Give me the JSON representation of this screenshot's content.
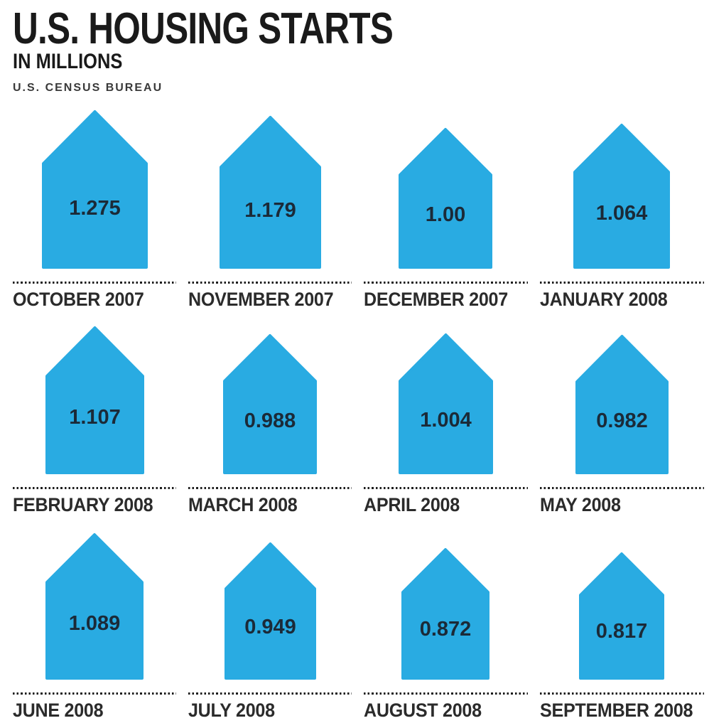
{
  "header": {
    "title": "U.S. HOUSING STARTS",
    "subtitle": "IN MILLIONS",
    "source": "U.S. CENSUS BUREAU"
  },
  "colors": {
    "house_fill": "#29ABE2",
    "value_text": "#1B2A38",
    "label_text": "#2B2B2B",
    "dotted_line": "#1D1D1D",
    "title_text": "#1A1A1A",
    "background": "#FFFFFF"
  },
  "chart_data": {
    "type": "bar",
    "variant": "pictogram-houses-area-scaled",
    "title": "U.S. HOUSING STARTS",
    "subtitle": "IN MILLIONS",
    "source": "U.S. CENSUS BUREAU",
    "unit": "millions",
    "legend_position": "none",
    "grid": false,
    "layout": {
      "columns": 4,
      "rows": 3
    },
    "categories": [
      "OCTOBER 2007",
      "NOVEMBER 2007",
      "DECEMBER 2007",
      "JANUARY 2008",
      "FEBRUARY 2008",
      "MARCH 2008",
      "APRIL 2008",
      "MAY 2008",
      "JUNE 2008",
      "JULY 2008",
      "AUGUST 2008",
      "SEPTEMBER 2008"
    ],
    "values": [
      1.275,
      1.179,
      1.0,
      1.064,
      1.107,
      0.988,
      1.004,
      0.982,
      1.089,
      0.949,
      0.872,
      0.817
    ],
    "value_labels": [
      "1.275",
      "1.179",
      "1.00",
      "1.064",
      "1.107",
      "0.988",
      "1.004",
      "0.982",
      "1.089",
      "0.949",
      "0.872",
      "0.817"
    ],
    "icon": "house-icon",
    "max_value": 1.275
  }
}
